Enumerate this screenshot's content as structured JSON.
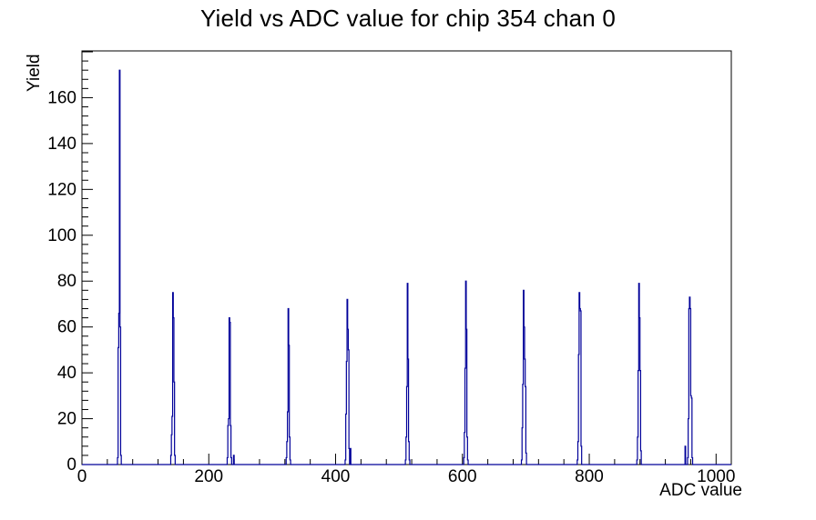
{
  "page": {
    "background": "#ffffff"
  },
  "chart_data": {
    "type": "histogram",
    "title": "Yield vs ADC value for chip 354 chan 0",
    "xlabel": "ADC value",
    "ylabel": "Yield",
    "xlim": [
      0,
      1024
    ],
    "ylim": [
      0,
      180.4
    ],
    "grid": false,
    "legend": false,
    "line_color": "#000099",
    "frame_color": "#000000",
    "x_ticks": {
      "major_step": 200,
      "minor_step": 40,
      "labels": [
        0,
        200,
        400,
        600,
        800,
        1000
      ]
    },
    "y_ticks": {
      "major_step": 20,
      "minor_step": 4,
      "labels": [
        0,
        20,
        40,
        60,
        80,
        100,
        120,
        140,
        160
      ]
    },
    "peak_positions_adc": [
      59,
      143,
      232,
      325,
      418,
      513,
      605,
      696,
      784,
      878,
      958
    ],
    "peak_heights": [
      172,
      75,
      64,
      68,
      72,
      79,
      80,
      76,
      75,
      79,
      73
    ],
    "bins": [
      [
        56,
        3
      ],
      [
        57,
        51
      ],
      [
        58,
        66
      ],
      [
        59,
        172
      ],
      [
        60,
        60
      ],
      [
        61,
        4
      ],
      [
        140,
        4
      ],
      [
        141,
        13
      ],
      [
        142,
        21
      ],
      [
        143,
        75
      ],
      [
        144,
        64
      ],
      [
        145,
        36
      ],
      [
        146,
        4
      ],
      [
        229,
        3
      ],
      [
        230,
        17
      ],
      [
        231,
        20
      ],
      [
        232,
        64
      ],
      [
        233,
        62
      ],
      [
        234,
        17
      ],
      [
        235,
        3
      ],
      [
        239,
        4
      ],
      [
        322,
        3
      ],
      [
        323,
        10
      ],
      [
        324,
        23
      ],
      [
        325,
        68
      ],
      [
        326,
        52
      ],
      [
        327,
        12
      ],
      [
        328,
        2
      ],
      [
        415,
        2
      ],
      [
        416,
        22
      ],
      [
        417,
        45
      ],
      [
        418,
        72
      ],
      [
        419,
        59
      ],
      [
        420,
        50
      ],
      [
        421,
        7
      ],
      [
        423,
        7
      ],
      [
        510,
        2
      ],
      [
        511,
        12
      ],
      [
        512,
        34
      ],
      [
        513,
        79
      ],
      [
        514,
        46
      ],
      [
        515,
        10
      ],
      [
        516,
        2
      ],
      [
        602,
        3
      ],
      [
        603,
        14
      ],
      [
        604,
        42
      ],
      [
        605,
        80
      ],
      [
        606,
        59
      ],
      [
        607,
        12
      ],
      [
        608,
        2
      ],
      [
        693,
        2
      ],
      [
        694,
        16
      ],
      [
        695,
        35
      ],
      [
        696,
        76
      ],
      [
        697,
        60
      ],
      [
        698,
        46
      ],
      [
        699,
        34
      ],
      [
        700,
        5
      ],
      [
        781,
        2
      ],
      [
        782,
        10
      ],
      [
        783,
        48
      ],
      [
        784,
        75
      ],
      [
        785,
        68
      ],
      [
        786,
        67
      ],
      [
        787,
        8
      ],
      [
        875,
        2
      ],
      [
        876,
        12
      ],
      [
        877,
        41
      ],
      [
        878,
        79
      ],
      [
        879,
        64
      ],
      [
        880,
        41
      ],
      [
        881,
        6
      ],
      [
        951,
        8
      ],
      [
        955,
        3
      ],
      [
        956,
        20
      ],
      [
        957,
        68
      ],
      [
        958,
        73
      ],
      [
        959,
        68
      ],
      [
        960,
        30
      ],
      [
        961,
        29
      ],
      [
        962,
        3
      ]
    ]
  }
}
